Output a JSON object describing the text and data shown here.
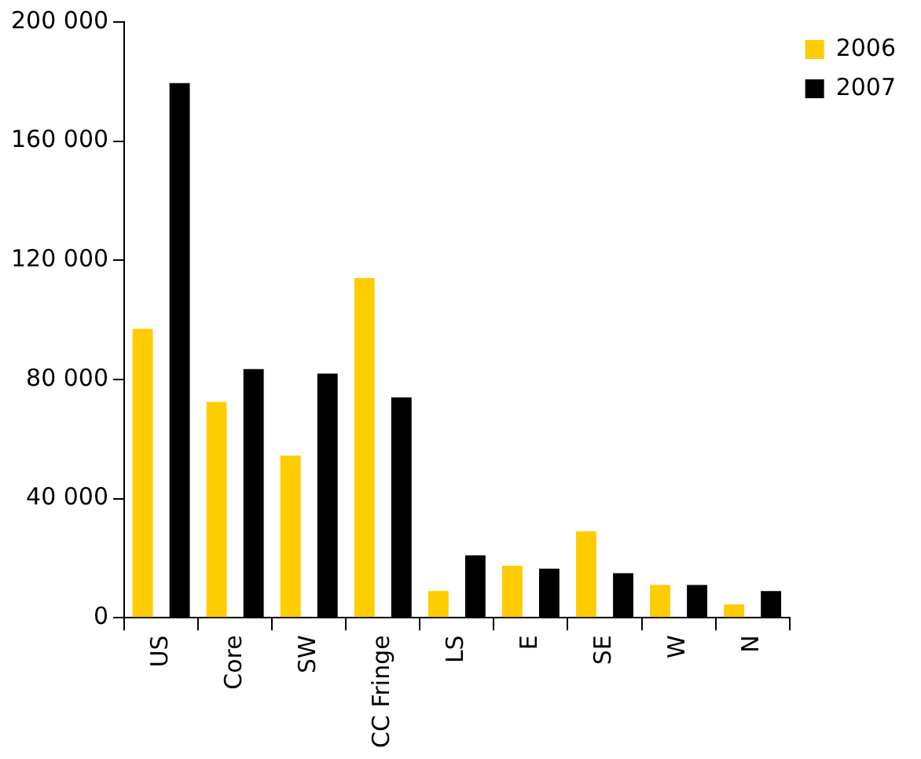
{
  "chart_data": {
    "type": "bar",
    "categories": [
      "US",
      "Core",
      "SW",
      "CC Fringe",
      "LS",
      "E",
      "SE",
      "W",
      "N"
    ],
    "series": [
      {
        "name": "2006",
        "color": "#ffcc00",
        "values": [
          97000,
          72500,
          54500,
          114000,
          9000,
          17500,
          29000,
          11000,
          4500
        ]
      },
      {
        "name": "2007",
        "color": "#000000",
        "values": [
          179500,
          83500,
          82000,
          74000,
          21000,
          16500,
          15000,
          11000,
          9000
        ]
      }
    ],
    "ylim": [
      0,
      200000
    ],
    "yticks": [
      0,
      40000,
      80000,
      120000,
      160000,
      200000
    ],
    "grid": false,
    "legend": "top right"
  }
}
